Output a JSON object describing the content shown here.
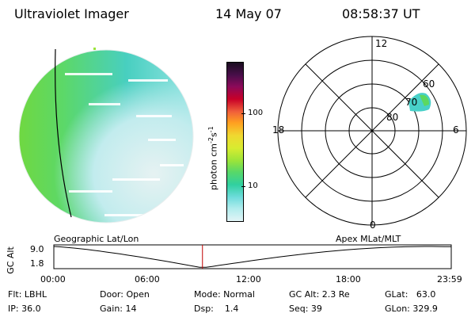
{
  "header": {
    "title": "Ultraviolet Imager",
    "date": "14 May 07",
    "time": "08:58:37 UT"
  },
  "colorbar": {
    "unit_prefix": "photon cm",
    "unit_exp1": "-2",
    "unit_mid": "s",
    "unit_exp2": "-1",
    "ticks": [
      "100",
      "10"
    ],
    "colors": [
      "#1a0d20",
      "#4a0e4a",
      "#8a0a5a",
      "#c80028",
      "#f0603a",
      "#ffa020",
      "#f0d830",
      "#d8ec30",
      "#9ae43a",
      "#58d868",
      "#30d0a0",
      "#6fdcdc",
      "#b0eced",
      "#e2f4f6"
    ]
  },
  "polar": {
    "mlt_labels": {
      "top": "12",
      "left": "18",
      "right": "6",
      "bottom": "0"
    },
    "lat_labels": [
      "60",
      "70",
      "80"
    ]
  },
  "timeline": {
    "left_label": "Geographic Lat/Lon",
    "right_label": "Apex MLat/MLT",
    "axis_title": "GC Alt",
    "y_top": "9.0",
    "y_bottom": "1.8",
    "x_ticks": [
      "00:00",
      "06:00",
      "12:00",
      "18:00",
      "23:59"
    ],
    "current_time_fraction": 0.374
  },
  "info": {
    "flt": "Flt: LBHL",
    "ip": "IP: 36.0",
    "door": "Door: Open",
    "gain": "Gain: 14",
    "mode": "Mode: Normal",
    "dsp": "Dsp:    1.4",
    "gcalt": "GC Alt: 2.3 Re",
    "seq": "Seq: 39",
    "glat": "GLat:   63.0",
    "glon": "GLon: 329.9"
  }
}
